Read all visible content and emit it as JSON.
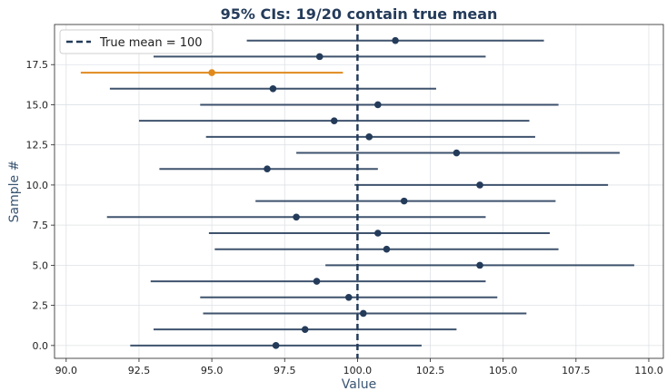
{
  "chart_data": {
    "type": "scatter",
    "title": "95% CIs: 19/20 contain true mean",
    "xlabel": "Value",
    "ylabel": "Sample #",
    "xlim": [
      89.6,
      110.5
    ],
    "ylim": [
      -0.8,
      20.0
    ],
    "xticks": [
      90.0,
      92.5,
      95.0,
      97.5,
      100.0,
      102.5,
      105.0,
      107.5,
      110.0
    ],
    "xtick_labels": [
      "90.0",
      "92.5",
      "95.0",
      "97.5",
      "100.0",
      "102.5",
      "105.0",
      "107.5",
      "110.0"
    ],
    "yticks": [
      0.0,
      2.5,
      5.0,
      7.5,
      10.0,
      12.5,
      15.0,
      17.5
    ],
    "ytick_labels": [
      "0.0",
      "2.5",
      "5.0",
      "7.5",
      "10.0",
      "12.5",
      "15.0",
      "17.5"
    ],
    "grid": true,
    "legend": {
      "position": "top-left",
      "entries": [
        "True mean = 100"
      ]
    },
    "true_mean": 100,
    "colors": {
      "contains": "#243b5a",
      "misses": "#e08a1e",
      "mean_line": "#243b5a",
      "grid": "#dde1e6"
    },
    "intervals": [
      {
        "sample": 0,
        "mean": 97.2,
        "lower": 92.2,
        "upper": 102.2,
        "contains_true_mean": true
      },
      {
        "sample": 1,
        "mean": 98.2,
        "lower": 93.0,
        "upper": 103.4,
        "contains_true_mean": true
      },
      {
        "sample": 2,
        "mean": 100.2,
        "lower": 94.7,
        "upper": 105.8,
        "contains_true_mean": true
      },
      {
        "sample": 3,
        "mean": 99.7,
        "lower": 94.6,
        "upper": 104.8,
        "contains_true_mean": true
      },
      {
        "sample": 4,
        "mean": 98.6,
        "lower": 92.9,
        "upper": 104.4,
        "contains_true_mean": true
      },
      {
        "sample": 5,
        "mean": 104.2,
        "lower": 98.9,
        "upper": 109.5,
        "contains_true_mean": true
      },
      {
        "sample": 6,
        "mean": 101.0,
        "lower": 95.1,
        "upper": 106.9,
        "contains_true_mean": true
      },
      {
        "sample": 7,
        "mean": 100.7,
        "lower": 94.9,
        "upper": 106.6,
        "contains_true_mean": true
      },
      {
        "sample": 8,
        "mean": 97.9,
        "lower": 91.4,
        "upper": 104.4,
        "contains_true_mean": true
      },
      {
        "sample": 9,
        "mean": 101.6,
        "lower": 96.5,
        "upper": 106.8,
        "contains_true_mean": true
      },
      {
        "sample": 10,
        "mean": 104.2,
        "lower": 99.9,
        "upper": 108.6,
        "contains_true_mean": true
      },
      {
        "sample": 11,
        "mean": 96.9,
        "lower": 93.2,
        "upper": 100.7,
        "contains_true_mean": true
      },
      {
        "sample": 12,
        "mean": 103.4,
        "lower": 97.9,
        "upper": 109.0,
        "contains_true_mean": true
      },
      {
        "sample": 13,
        "mean": 100.4,
        "lower": 94.8,
        "upper": 106.1,
        "contains_true_mean": true
      },
      {
        "sample": 14,
        "mean": 99.2,
        "lower": 92.5,
        "upper": 105.9,
        "contains_true_mean": true
      },
      {
        "sample": 15,
        "mean": 100.7,
        "lower": 94.6,
        "upper": 106.9,
        "contains_true_mean": true
      },
      {
        "sample": 16,
        "mean": 97.1,
        "lower": 91.5,
        "upper": 102.7,
        "contains_true_mean": true
      },
      {
        "sample": 17,
        "mean": 95.0,
        "lower": 90.5,
        "upper": 99.5,
        "contains_true_mean": false
      },
      {
        "sample": 18,
        "mean": 98.7,
        "lower": 93.0,
        "upper": 104.4,
        "contains_true_mean": true
      },
      {
        "sample": 19,
        "mean": 101.3,
        "lower": 96.2,
        "upper": 106.4,
        "contains_true_mean": true
      }
    ]
  }
}
